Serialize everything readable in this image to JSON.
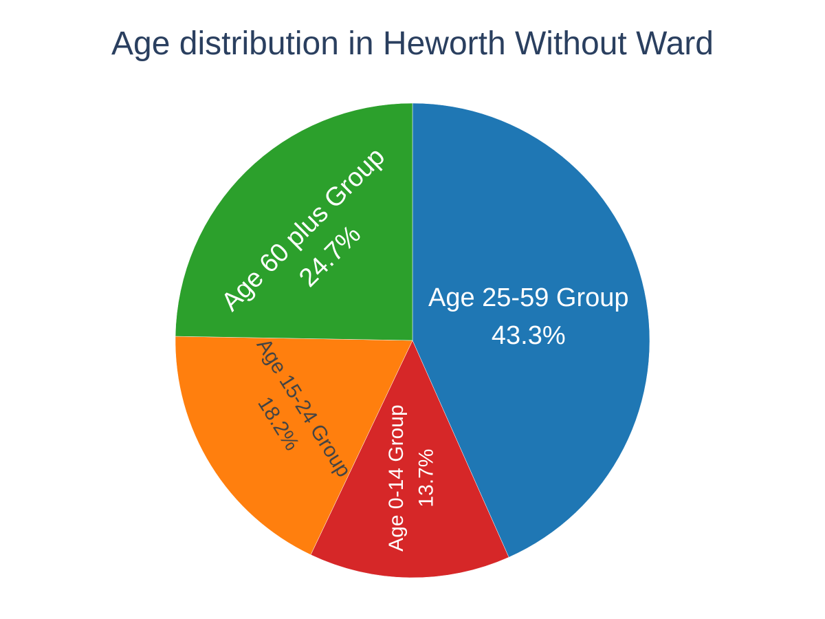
{
  "chart_data": {
    "type": "pie",
    "title": "Age distribution in Heworth Without Ward",
    "direction": "clockwise",
    "start": "12 o'clock",
    "slices": [
      {
        "label": "Age 25-59 Group",
        "value": 43.3,
        "percent_text": "43.3%",
        "color": "#1f77b4",
        "text_color": "#ffffff"
      },
      {
        "label": "Age 0-14 Group",
        "value": 13.7,
        "percent_text": "13.7%",
        "color": "#d62728",
        "text_color": "#ffffff"
      },
      {
        "label": "Age 15-24 Group",
        "value": 18.2,
        "percent_text": "18.2%",
        "color": "#ff7f0e",
        "text_color": "#444444"
      },
      {
        "label": "Age 60 plus Group",
        "value": 24.7,
        "percent_text": "24.7%",
        "color": "#2ca02c",
        "text_color": "#ffffff"
      }
    ]
  }
}
